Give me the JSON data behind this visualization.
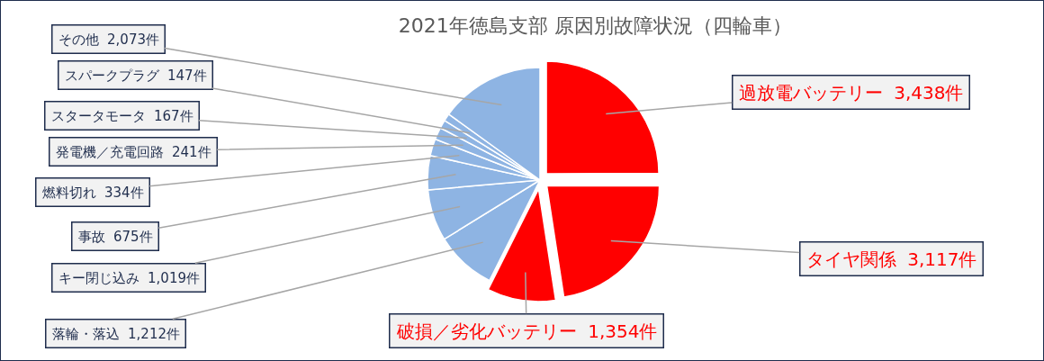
{
  "chart_data": {
    "type": "pie",
    "title": "2021年徳島支部 原因別故障状況（四輪車）",
    "categories": [
      "過放電バッテリー",
      "タイヤ関係",
      "破損／劣化バッテリー",
      "落輪・落込",
      "キー閉じ込み",
      "事故",
      "燃料切れ",
      "発電機／充電回路",
      "スタータモータ",
      "スパークプラグ",
      "その他"
    ],
    "values": [
      3438,
      3117,
      1354,
      1212,
      1019,
      675,
      334,
      241,
      167,
      147,
      2073
    ],
    "value_labels": [
      "3,438件",
      "3,117件",
      "1,354件",
      "1,212件",
      "1,019件",
      "675件",
      "334件",
      "241件",
      "167件",
      "147件",
      "2,073件"
    ],
    "colors": [
      "#ff0000",
      "#ff0000",
      "#ff0000",
      "#8eb4e3",
      "#8eb4e3",
      "#8eb4e3",
      "#8eb4e3",
      "#8eb4e3",
      "#8eb4e3",
      "#8eb4e3",
      "#8eb4e3"
    ],
    "legend": false
  }
}
